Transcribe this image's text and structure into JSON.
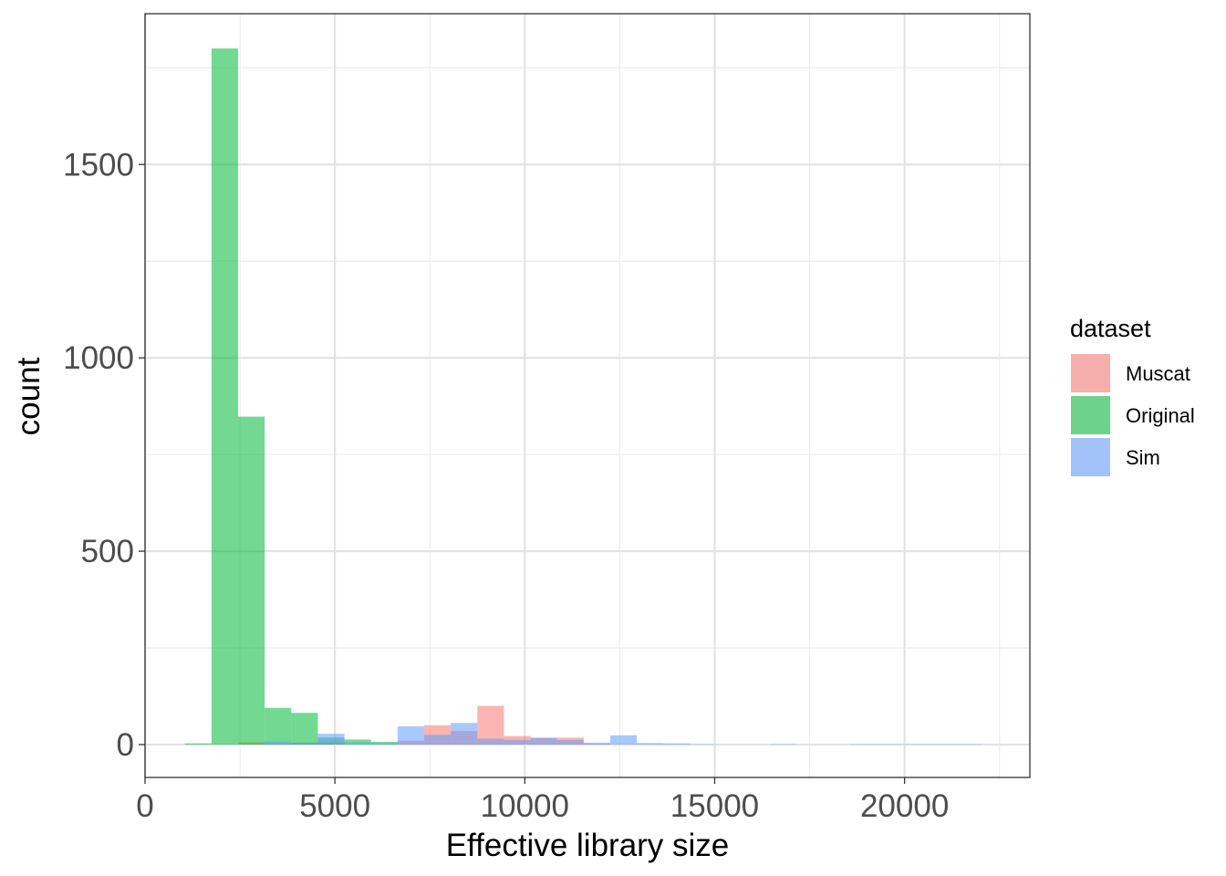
{
  "chart_data": {
    "type": "histogram",
    "title": "",
    "xlabel": "Effective library size",
    "ylabel": "count",
    "xlim": [
      0,
      23300
    ],
    "ylim": [
      -85,
      1890
    ],
    "x_ticks": [
      0,
      5000,
      10000,
      15000,
      20000
    ],
    "y_ticks": [
      0,
      500,
      1000,
      1500
    ],
    "x_tick_labels": [
      "0",
      "5000",
      "10000",
      "15000",
      "20000"
    ],
    "y_tick_labels": [
      "0",
      "500",
      "1000",
      "1500"
    ],
    "grid": true,
    "bar_opacity": 0.55,
    "legend": {
      "title": "dataset",
      "position": "right",
      "entries": [
        "Muscat",
        "Original",
        "Sim"
      ]
    },
    "series": [
      {
        "name": "Muscat",
        "color": "#F8766D",
        "bins": [
          {
            "x0": 2450,
            "x1": 3150,
            "count": 6
          },
          {
            "x0": 3150,
            "x1": 3850,
            "count": 2
          },
          {
            "x0": 3850,
            "x1": 4550,
            "count": 5
          },
          {
            "x0": 4550,
            "x1": 5250,
            "count": 6
          },
          {
            "x0": 6650,
            "x1": 7350,
            "count": 10
          },
          {
            "x0": 7350,
            "x1": 8050,
            "count": 50
          },
          {
            "x0": 8050,
            "x1": 8750,
            "count": 35
          },
          {
            "x0": 8750,
            "x1": 9450,
            "count": 100
          },
          {
            "x0": 9450,
            "x1": 10150,
            "count": 22
          },
          {
            "x0": 10150,
            "x1": 10850,
            "count": 18
          },
          {
            "x0": 10850,
            "x1": 11550,
            "count": 18
          },
          {
            "x0": 11550,
            "x1": 12250,
            "count": 2
          }
        ]
      },
      {
        "name": "Original",
        "color": "#00BA38",
        "bins": [
          {
            "x0": 1050,
            "x1": 1750,
            "count": 3
          },
          {
            "x0": 1750,
            "x1": 2450,
            "count": 1800
          },
          {
            "x0": 2450,
            "x1": 3150,
            "count": 848
          },
          {
            "x0": 3150,
            "x1": 3850,
            "count": 95
          },
          {
            "x0": 3850,
            "x1": 4550,
            "count": 82
          },
          {
            "x0": 4550,
            "x1": 5250,
            "count": 18
          },
          {
            "x0": 5250,
            "x1": 5950,
            "count": 13
          },
          {
            "x0": 5950,
            "x1": 6650,
            "count": 7
          }
        ]
      },
      {
        "name": "Sim",
        "color": "#619CFF",
        "bins": [
          {
            "x0": 3150,
            "x1": 3850,
            "count": 8
          },
          {
            "x0": 3850,
            "x1": 4550,
            "count": 5
          },
          {
            "x0": 4550,
            "x1": 5250,
            "count": 28
          },
          {
            "x0": 5250,
            "x1": 5950,
            "count": 5
          },
          {
            "x0": 5950,
            "x1": 6650,
            "count": 3
          },
          {
            "x0": 6650,
            "x1": 7350,
            "count": 47
          },
          {
            "x0": 7350,
            "x1": 8050,
            "count": 25
          },
          {
            "x0": 8050,
            "x1": 8750,
            "count": 56
          },
          {
            "x0": 8750,
            "x1": 9450,
            "count": 15
          },
          {
            "x0": 9450,
            "x1": 10150,
            "count": 12
          },
          {
            "x0": 10150,
            "x1": 10850,
            "count": 17
          },
          {
            "x0": 10850,
            "x1": 11550,
            "count": 12
          },
          {
            "x0": 11550,
            "x1": 12250,
            "count": 5
          },
          {
            "x0": 12250,
            "x1": 12950,
            "count": 24
          },
          {
            "x0": 12950,
            "x1": 13650,
            "count": 4
          },
          {
            "x0": 13650,
            "x1": 14350,
            "count": 3
          },
          {
            "x0": 14350,
            "x1": 15050,
            "count": 1
          },
          {
            "x0": 16450,
            "x1": 17150,
            "count": 1
          },
          {
            "x0": 18550,
            "x1": 19250,
            "count": 1
          },
          {
            "x0": 19250,
            "x1": 19950,
            "count": 1
          },
          {
            "x0": 19950,
            "x1": 20650,
            "count": 1
          },
          {
            "x0": 20650,
            "x1": 21350,
            "count": 1
          },
          {
            "x0": 21350,
            "x1": 22050,
            "count": 1
          }
        ]
      }
    ]
  }
}
